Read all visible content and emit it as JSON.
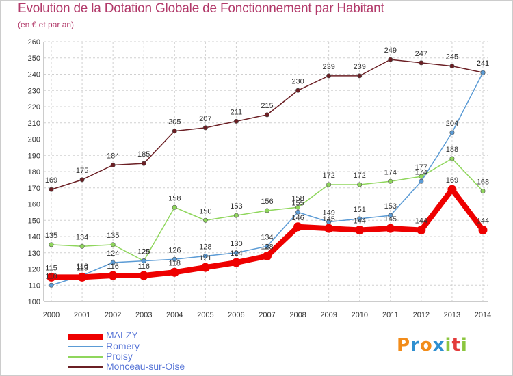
{
  "title": "Evolution de la Dotation Globale de Fonctionnement par Habitant",
  "subtitle": "(en € et par an)",
  "logo": {
    "letters": [
      "P",
      "r",
      "o",
      "x",
      "i",
      "t",
      "i"
    ],
    "colors": [
      "#f28c1a",
      "#2f8fd0",
      "#f28c1a",
      "#2f8fd0",
      "#8cc63f",
      "#e33b3b",
      "#8cc63f"
    ]
  },
  "chart_data": {
    "type": "line",
    "title": "Evolution de la Dotation Globale de Fonctionnement par Habitant",
    "ylabel": "(en € et par an)",
    "xlabel": "",
    "grid": true,
    "x": [
      "2000",
      "2001",
      "2002",
      "2003",
      "2004",
      "2005",
      "2006",
      "2007",
      "2008",
      "2009",
      "2010",
      "2011",
      "2012",
      "2013",
      "2014"
    ],
    "ylim": [
      100,
      260
    ],
    "yticks": [
      "100",
      "110",
      "120",
      "130",
      "140",
      "150",
      "160",
      "170",
      "180",
      "190",
      "200",
      "210",
      "220",
      "230",
      "240",
      "250",
      "260"
    ],
    "series": [
      {
        "name": "Monceau-sur-Oise",
        "color": "#6b1f24",
        "values": [
          169,
          175,
          184,
          185,
          205,
          207,
          211,
          215,
          230,
          239,
          239,
          249,
          247,
          245,
          241
        ],
        "labels": [
          "169",
          "175",
          "184",
          "185",
          "205",
          "207",
          "211",
          "215",
          "230",
          "239",
          "239",
          "249",
          "247",
          "245",
          "241"
        ]
      },
      {
        "name": "Proisy",
        "color": "#8fd65c",
        "values": [
          135,
          134,
          135,
          125,
          158,
          150,
          153,
          156,
          158,
          172,
          172,
          174,
          177,
          188,
          168
        ],
        "labels": [
          "135",
          "134",
          "135",
          "125",
          "158",
          "150",
          "153",
          "156",
          "158",
          "172",
          "172",
          "174",
          "177",
          "188",
          "168"
        ]
      },
      {
        "name": "Romery",
        "color": "#5b9bd5",
        "values": [
          110,
          116,
          124,
          125,
          126,
          128,
          130,
          134,
          155,
          149,
          151,
          153,
          174,
          204,
          241
        ],
        "labels": [
          "110",
          "116",
          "124",
          "125",
          "126",
          "128",
          "130",
          "134",
          "155",
          "149",
          "151",
          "153",
          "174",
          "204",
          "241"
        ]
      },
      {
        "name": "MALZY",
        "color": "#ee0000",
        "values": [
          115,
          115,
          116,
          116,
          118,
          121,
          124,
          128,
          146,
          145,
          144,
          145,
          144,
          169,
          144
        ],
        "labels": [
          "115",
          "115",
          "116",
          "116",
          "118",
          "121",
          "124",
          "128",
          "146",
          "145",
          "144",
          "145",
          "144",
          "169",
          "144"
        ]
      }
    ],
    "legend": [
      "MALZY",
      "Romery",
      "Proisy",
      "Monceau-sur-Oise"
    ]
  }
}
